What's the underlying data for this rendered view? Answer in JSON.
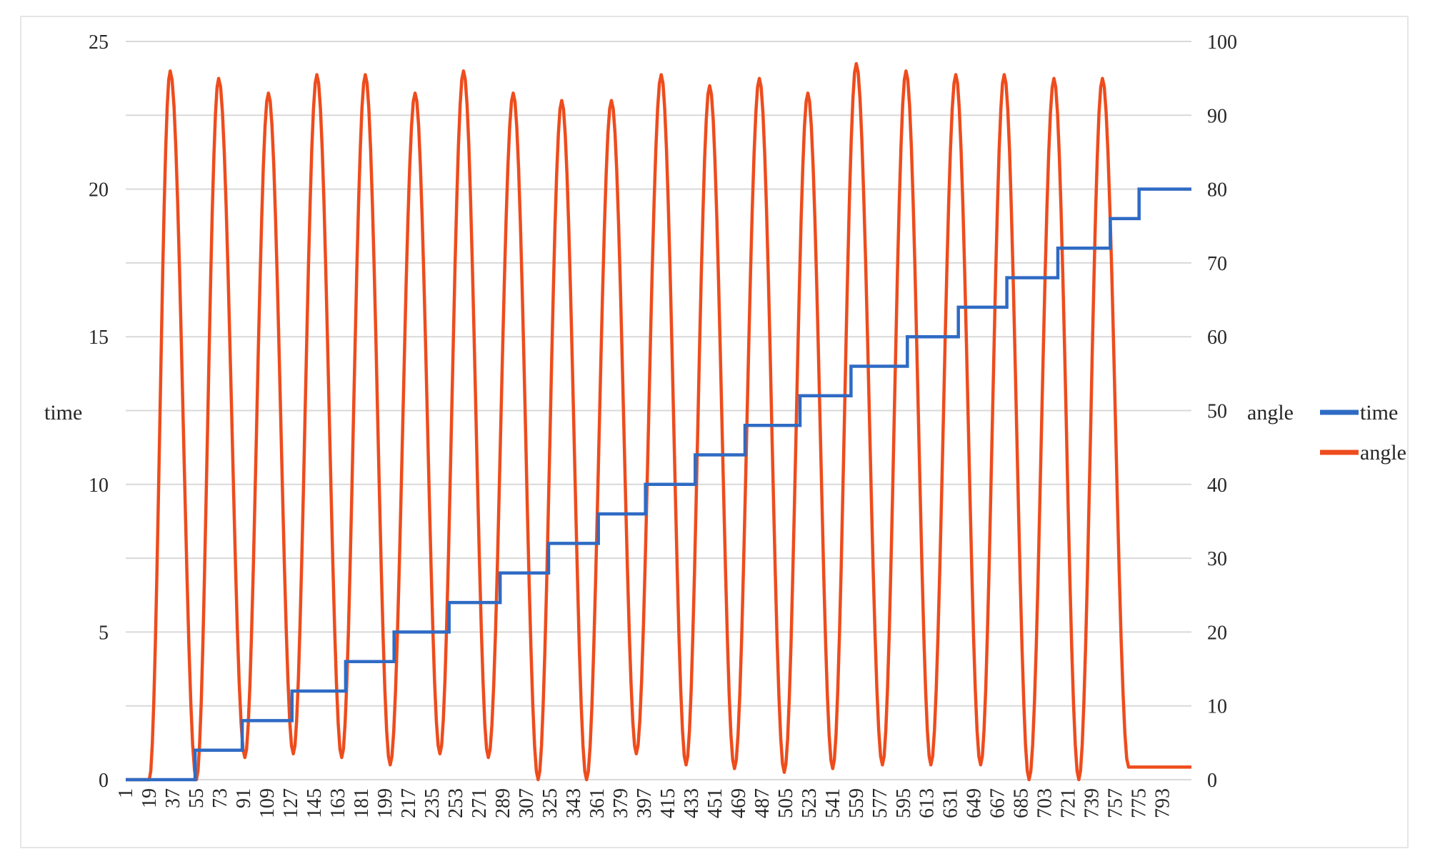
{
  "chart_data": {
    "type": "line",
    "title": "",
    "ylabel_left": "time",
    "ylabel_right": "angle",
    "ylim_left": [
      0,
      25
    ],
    "ylim_right": [
      0,
      100
    ],
    "yticks_left": [
      0,
      5,
      10,
      15,
      20,
      25
    ],
    "yticks_right": [
      0,
      10,
      20,
      30,
      40,
      50,
      60,
      70,
      80,
      90,
      100
    ],
    "x_range": [
      1,
      815
    ],
    "x_tick_labels": [
      "1",
      "19",
      "37",
      "55",
      "73",
      "91",
      "109",
      "127",
      "145",
      "163",
      "181",
      "199",
      "217",
      "235",
      "253",
      "271",
      "289",
      "307",
      "325",
      "343",
      "361",
      "379",
      "397",
      "415",
      "433",
      "451",
      "469",
      "487",
      "505",
      "523",
      "541",
      "559",
      "577",
      "595",
      "613",
      "631",
      "649",
      "667",
      "685",
      "703",
      "721",
      "739",
      "757",
      "775",
      "793"
    ],
    "grid": true,
    "legend": "right",
    "series": [
      {
        "name": "time",
        "axis": "left",
        "color": "#2f6bc4",
        "step_starts": [
          1,
          54,
          90,
          128,
          169,
          206,
          248,
          287,
          324,
          362,
          398,
          436,
          474,
          516,
          555,
          598,
          637,
          674,
          713,
          753,
          775
        ],
        "values": [
          0,
          1,
          2,
          3,
          4,
          5,
          6,
          7,
          8,
          9,
          10,
          11,
          12,
          13,
          14,
          15,
          16,
          17,
          18,
          19,
          20
        ]
      },
      {
        "name": "angle",
        "axis": "right",
        "color": "#ee4c1d",
        "baseline": 0,
        "rise_start": 19,
        "peaks": [
          {
            "x": 35,
            "y": 96
          },
          {
            "x": 72,
            "y": 95
          },
          {
            "x": 110,
            "y": 93
          },
          {
            "x": 147,
            "y": 95.5
          },
          {
            "x": 184,
            "y": 95.5
          },
          {
            "x": 222,
            "y": 93
          },
          {
            "x": 259,
            "y": 96
          },
          {
            "x": 297,
            "y": 93
          },
          {
            "x": 334,
            "y": 92
          },
          {
            "x": 372,
            "y": 92
          },
          {
            "x": 410,
            "y": 95.5
          },
          {
            "x": 447,
            "y": 94
          },
          {
            "x": 485,
            "y": 95
          },
          {
            "x": 522,
            "y": 93
          },
          {
            "x": 559,
            "y": 97
          },
          {
            "x": 597,
            "y": 96
          },
          {
            "x": 635,
            "y": 95.5
          },
          {
            "x": 672,
            "y": 95.5
          },
          {
            "x": 710,
            "y": 95
          },
          {
            "x": 747,
            "y": 95
          }
        ],
        "troughs": [
          {
            "x": 55,
            "y": 0
          },
          {
            "x": 92,
            "y": 3
          },
          {
            "x": 129,
            "y": 3.5
          },
          {
            "x": 166,
            "y": 3
          },
          {
            "x": 203,
            "y": 2
          },
          {
            "x": 241,
            "y": 3.5
          },
          {
            "x": 278,
            "y": 3
          },
          {
            "x": 316,
            "y": 0
          },
          {
            "x": 353,
            "y": 0
          },
          {
            "x": 391,
            "y": 3.5
          },
          {
            "x": 429,
            "y": 2
          },
          {
            "x": 466,
            "y": 1.5
          },
          {
            "x": 504,
            "y": 1
          },
          {
            "x": 541,
            "y": 1.5
          },
          {
            "x": 579,
            "y": 2
          },
          {
            "x": 616,
            "y": 2
          },
          {
            "x": 654,
            "y": 2
          },
          {
            "x": 691,
            "y": 0
          },
          {
            "x": 729,
            "y": 0
          }
        ],
        "tail_end": {
          "x": 815,
          "y": 1.7
        }
      }
    ]
  }
}
